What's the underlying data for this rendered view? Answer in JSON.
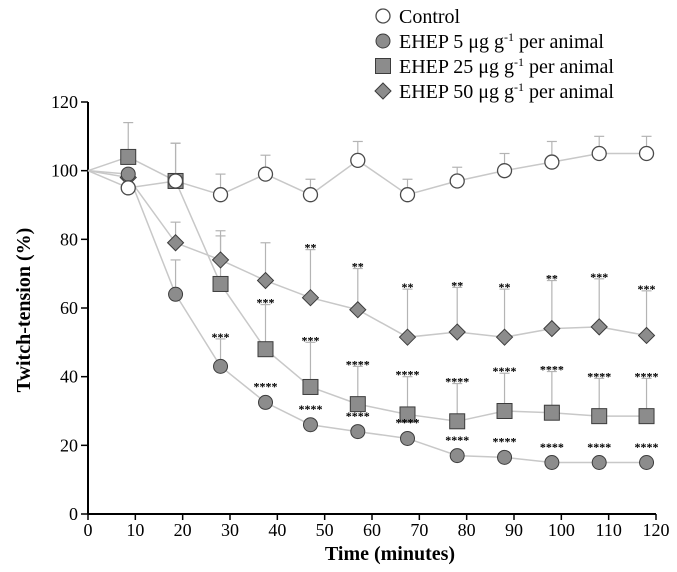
{
  "chart_data": {
    "type": "line",
    "xlabel": "Time (minutes)",
    "ylabel": "Twitch-tension (%)",
    "xlim": [
      0,
      120
    ],
    "ylim": [
      0,
      120
    ],
    "xticks": [
      "0",
      "10",
      "20",
      "30",
      "40",
      "50",
      "60",
      "70",
      "80",
      "90",
      "100",
      "110",
      "120"
    ],
    "yticks": [
      "0",
      "20",
      "40",
      "60",
      "80",
      "100",
      "120"
    ],
    "legend_position": "top-right",
    "series": [
      {
        "name": "Control",
        "marker": "circle-open",
        "x": [
          0,
          8.5,
          18.5,
          28,
          37.5,
          47,
          57,
          67.5,
          78,
          88,
          98,
          108,
          118
        ],
        "y": [
          100,
          95,
          97,
          93,
          99,
          93,
          103,
          93,
          97,
          100,
          102.5,
          105,
          105
        ],
        "err": [
          0,
          0,
          11,
          6,
          5.5,
          4.5,
          5.5,
          4.5,
          4,
          5,
          6,
          5,
          5
        ],
        "sig": [
          "",
          "",
          "",
          "",
          "",
          "",
          "",
          "",
          "",
          "",
          "",
          "",
          ""
        ]
      },
      {
        "name": "EHEP 5 μg g⁻¹ per animal",
        "marker": "circle-filled",
        "x": [
          0,
          8.5,
          18.5,
          28,
          37.5,
          47,
          57,
          67.5,
          78,
          88,
          98,
          108,
          118
        ],
        "y": [
          100,
          99,
          64,
          43,
          32.5,
          26,
          24,
          22,
          17,
          16.5,
          15,
          15,
          15
        ],
        "err": [
          0,
          0,
          10,
          8,
          0,
          0,
          0,
          0,
          0,
          0,
          0,
          0,
          0
        ],
        "sig": [
          "",
          "",
          "",
          "***",
          "****",
          "****",
          "****",
          "****",
          "****",
          "****",
          "****",
          "****",
          "****"
        ]
      },
      {
        "name": "EHEP 25 μg g⁻¹ per animal",
        "marker": "square",
        "x": [
          0,
          8.5,
          18.5,
          28,
          37.5,
          47,
          57,
          67.5,
          78,
          88,
          98,
          108,
          118
        ],
        "y": [
          100,
          104,
          97,
          67,
          48,
          37,
          32,
          29,
          27,
          30,
          29.5,
          28.5,
          28.5
        ],
        "err": [
          0,
          10,
          11,
          14,
          13,
          13,
          11,
          11,
          11,
          11,
          12,
          11,
          11
        ],
        "sig": [
          "",
          "",
          "",
          "",
          "***",
          "***",
          "****",
          "****",
          "****",
          "****",
          "****",
          "****",
          "****"
        ]
      },
      {
        "name": "EHEP 50 μg g⁻¹ per animal",
        "marker": "diamond",
        "x": [
          0,
          8.5,
          18.5,
          28,
          37.5,
          47,
          57,
          67.5,
          78,
          88,
          98,
          108,
          118
        ],
        "y": [
          100,
          98,
          79,
          74,
          68,
          63,
          59.5,
          51.5,
          53,
          51.5,
          54,
          54.5,
          52
        ],
        "err": [
          0,
          0,
          6,
          8.5,
          11,
          14,
          12,
          14,
          13,
          14,
          14,
          14,
          13
        ],
        "sig": [
          "",
          "",
          "",
          "",
          "",
          "**",
          "**",
          "**",
          "**",
          "**",
          "**",
          "***",
          "***"
        ]
      }
    ],
    "legend": [
      {
        "label": "Control",
        "sup": "",
        "suffix": ""
      },
      {
        "label": "EHEP 5 μg g",
        "sup": "-1",
        "suffix": " per animal"
      },
      {
        "label": "EHEP 25 μg g",
        "sup": "-1",
        "suffix": " per animal"
      },
      {
        "label": "EHEP 50 μg g",
        "sup": "-1",
        "suffix": " per animal"
      }
    ]
  },
  "colors": {
    "marker_fill": "#8c8c8c",
    "marker_stroke": "#3c3c3c",
    "line": "#c8c8c8",
    "error_bar": "#b4b4b4",
    "axis": "#000000"
  }
}
